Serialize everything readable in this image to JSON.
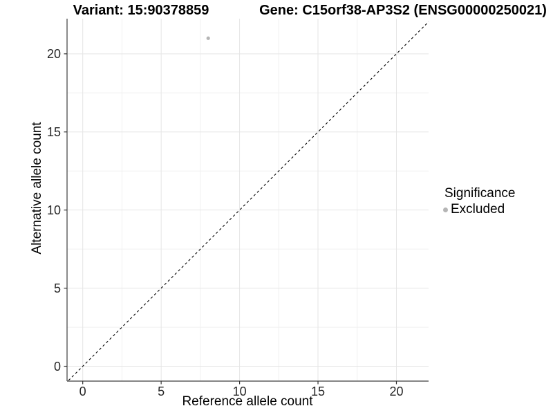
{
  "titles": {
    "left": "Variant: 15:90378859",
    "right": "Gene: C15orf38-AP3S2 (ENSG00000250021)"
  },
  "legend": {
    "title": "Significance",
    "items": [
      {
        "label": "Excluded",
        "color": "#b5b5b5"
      }
    ]
  },
  "chart_data": {
    "type": "scatter",
    "title_left": "Variant: 15:90378859",
    "title_right": "Gene: C15orf38-AP3S2 (ENSG00000250021)",
    "xlabel": "Reference allele count",
    "ylabel": "Alternative allele count",
    "xticks": [
      0,
      5,
      10,
      15,
      20
    ],
    "yticks": [
      0,
      5,
      10,
      15,
      20
    ],
    "xminor": [
      2.5,
      7.5,
      12.5,
      17.5
    ],
    "yminor": [
      2.5,
      7.5,
      12.5,
      17.5
    ],
    "xlim": [
      -1.0,
      22.05
    ],
    "ylim": [
      -0.95,
      22.25
    ],
    "grid": "major+minor",
    "legend_position": "right",
    "series": [
      {
        "name": "Excluded",
        "color": "#b5b5b5",
        "points": [
          {
            "x": 8,
            "y": 21
          }
        ]
      }
    ],
    "reference_line": {
      "type": "identity y=x",
      "style": "dashed",
      "color": "#000000"
    },
    "colors": {
      "axis_line": "#3c3c3c",
      "tick_mark": "#333333",
      "grid_major": "#e5e5e5",
      "grid_minor": "#f0f0f0",
      "point": "#b5b5b5",
      "background": "#ffffff"
    }
  }
}
